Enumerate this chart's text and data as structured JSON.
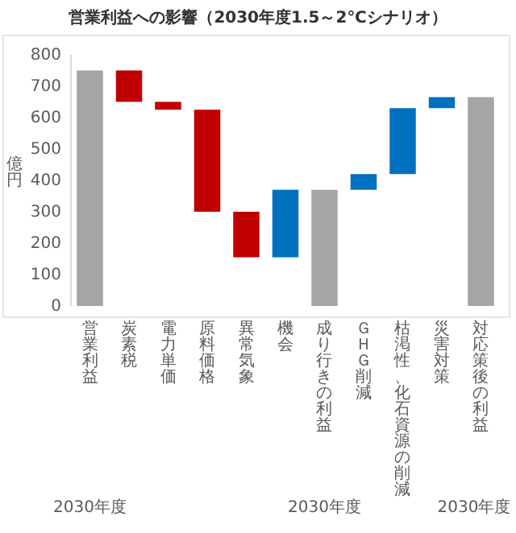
{
  "chart_data": {
    "type": "bar",
    "title": "営業利益への影響（2030年度1.5～2℃シナリオ）",
    "ylabel": "億円",
    "categories": [
      "営業利益",
      "炭素税",
      "電力単価",
      "原料価格",
      "異常気象",
      "機会",
      "成り行きの利益",
      "ＧＨＧ削減",
      "枯渇性、化石資源の削減",
      "災害対策",
      "対応策後の利益"
    ],
    "values": [
      750,
      -100,
      -25,
      -325,
      -145,
      215,
      370,
      50,
      210,
      35,
      665
    ],
    "base": [
      0,
      750,
      650,
      625,
      300,
      155,
      0,
      370,
      420,
      630,
      0
    ],
    "colors": [
      "#a5a5a5",
      "#c00000",
      "#c00000",
      "#c00000",
      "#c00000",
      "#0070c0",
      "#a5a5a5",
      "#0070c0",
      "#0070c0",
      "#0070c0",
      "#a5a5a5"
    ],
    "ylim": [
      0,
      800
    ],
    "yticks": [
      0,
      100,
      200,
      300,
      400,
      500,
      600,
      700,
      800
    ],
    "grid": false,
    "annotations": [
      "2030年度",
      "2030年度",
      "2030年度"
    ]
  }
}
